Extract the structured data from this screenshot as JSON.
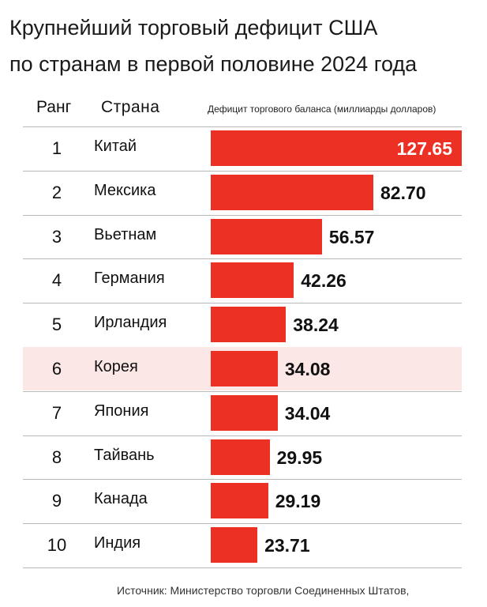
{
  "title_line1": "Крупнейший торговый дефицит США",
  "title_line2": "по странам в первой половине 2024 года",
  "columns": {
    "rank": "Ранг",
    "country": "Страна",
    "value": "Дефицит торгового баланса (миллиарды долларов)"
  },
  "source": "Источник: Министерство торговли Соединенных Штатов,",
  "colors": {
    "bar": "#ec3023",
    "highlight_row": "#fbe7e6",
    "rule": "#b9b9b9"
  },
  "chart_data": {
    "type": "bar",
    "orientation": "horizontal",
    "title": "Крупнейший торговый дефицит США по странам в первой половине 2024 года",
    "xlabel": "Дефицит торгового баланса (миллиарды долларов)",
    "ylabel": "Страна",
    "xlim": [
      0,
      127.65
    ],
    "ranks": [
      "1",
      "2",
      "3",
      "4",
      "5",
      "6",
      "7",
      "8",
      "9",
      "10"
    ],
    "categories": [
      "Китай",
      "Мексика",
      "Вьетнам",
      "Германия",
      "Ирландия",
      "Корея",
      "Япония",
      "Тайвань",
      "Канада",
      "Индия"
    ],
    "values": [
      127.65,
      82.7,
      56.57,
      42.26,
      38.24,
      34.08,
      34.04,
      29.95,
      29.19,
      23.71
    ],
    "value_labels": [
      "127.65",
      "82.70",
      "56.57",
      "42.26",
      "38.24",
      "34.08",
      "34.04",
      "29.95",
      "29.19",
      "23.71"
    ],
    "highlighted": "Корея"
  }
}
